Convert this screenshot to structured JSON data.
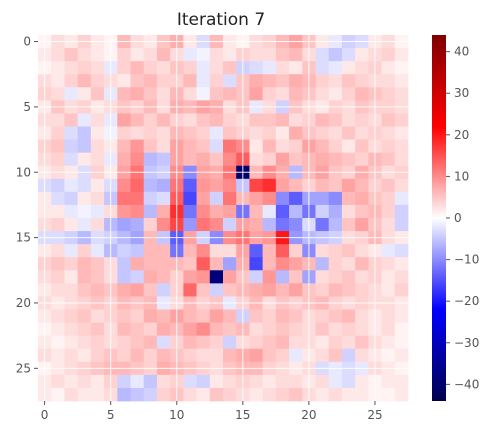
{
  "chart_data": {
    "type": "heatmap",
    "title": "Iteration 7",
    "rows": 28,
    "cols": 28,
    "xticks": [
      0,
      5,
      10,
      15,
      20,
      25
    ],
    "yticks": [
      0,
      5,
      10,
      15,
      20,
      25
    ],
    "colorbar": {
      "min": -44,
      "max": 44,
      "ticks": [
        40,
        30,
        20,
        10,
        0,
        -10,
        -20,
        -30,
        -40
      ],
      "colormap": "seismic"
    },
    "grid": true,
    "values": [
      [
        1,
        3,
        2,
        4,
        2,
        1,
        6,
        3,
        2,
        5,
        7,
        2,
        -3,
        6,
        2,
        1,
        3,
        4,
        6,
        8,
        5,
        2,
        -2,
        -4,
        -3,
        2,
        3,
        1
      ],
      [
        2,
        3,
        5,
        3,
        2,
        1,
        4,
        2,
        3,
        6,
        3,
        -2,
        -1,
        3,
        2,
        4,
        3,
        3,
        5,
        6,
        3,
        -3,
        -5,
        -3,
        2,
        3,
        4,
        2
      ],
      [
        1,
        2,
        3,
        4,
        3,
        -2,
        4,
        6,
        4,
        3,
        5,
        4,
        -2,
        3,
        5,
        -4,
        -3,
        -2,
        3,
        2,
        5,
        -3,
        -2,
        2,
        3,
        4,
        2,
        1
      ],
      [
        3,
        2,
        4,
        6,
        4,
        3,
        2,
        5,
        6,
        4,
        4,
        6,
        -2,
        4,
        -3,
        5,
        7,
        6,
        5,
        7,
        6,
        4,
        3,
        5,
        4,
        3,
        3,
        2
      ],
      [
        4,
        3,
        -2,
        2,
        5,
        -2,
        6,
        7,
        5,
        3,
        6,
        3,
        -1,
        5,
        6,
        5,
        8,
        4,
        3,
        6,
        5,
        3,
        2,
        4,
        6,
        5,
        4,
        3
      ],
      [
        2,
        5,
        3,
        4,
        2,
        3,
        5,
        4,
        6,
        3,
        7,
        6,
        8,
        7,
        3,
        5,
        -2,
        3,
        -4,
        5,
        3,
        2,
        4,
        3,
        5,
        4,
        4,
        3
      ],
      [
        3,
        3,
        5,
        -2,
        3,
        -2,
        8,
        6,
        4,
        6,
        4,
        3,
        5,
        6,
        4,
        3,
        5,
        5,
        6,
        3,
        4,
        6,
        5,
        3,
        4,
        3,
        5,
        4
      ],
      [
        2,
        4,
        -3,
        -5,
        2,
        -1,
        4,
        3,
        4,
        3,
        6,
        5,
        4,
        -2,
        5,
        4,
        3,
        4,
        2,
        7,
        5,
        4,
        3,
        5,
        3,
        4,
        3,
        2
      ],
      [
        4,
        5,
        -4,
        -5,
        3,
        2,
        6,
        9,
        5,
        3,
        8,
        6,
        5,
        -3,
        12,
        10,
        2,
        6,
        3,
        4,
        8,
        6,
        4,
        2,
        5,
        3,
        4,
        3
      ],
      [
        3,
        4,
        -3,
        2,
        3,
        -2,
        7,
        10,
        -6,
        -5,
        8,
        6,
        7,
        5,
        10,
        14,
        3,
        4,
        8,
        5,
        6,
        7,
        6,
        5,
        4,
        6,
        5,
        3
      ],
      [
        2,
        3,
        2,
        -3,
        4,
        2,
        8,
        12,
        -5,
        -4,
        10,
        -10,
        8,
        7,
        12,
        -40,
        6,
        10,
        7,
        -6,
        6,
        8,
        5,
        4,
        7,
        5,
        3,
        4
      ],
      [
        -3,
        -4,
        -2,
        -3,
        2,
        -3,
        10,
        13,
        -6,
        -7,
        12,
        -14,
        9,
        8,
        10,
        -5,
        16,
        18,
        8,
        6,
        4,
        6,
        5,
        8,
        6,
        4,
        5,
        3
      ],
      [
        2,
        -3,
        -4,
        2,
        3,
        -5,
        12,
        12,
        -4,
        -3,
        14,
        -16,
        8,
        -4,
        12,
        6,
        8,
        10,
        -10,
        -14,
        -8,
        -8,
        -10,
        6,
        7,
        5,
        4,
        -2
      ],
      [
        2,
        2,
        -2,
        -1,
        -2,
        3,
        9,
        10,
        -6,
        7,
        18,
        -12,
        10,
        7,
        8,
        -12,
        6,
        -2,
        -14,
        -6,
        -12,
        -4,
        -7,
        3,
        5,
        6,
        4,
        -4
      ],
      [
        3,
        4,
        2,
        -2,
        3,
        -6,
        -8,
        -7,
        4,
        10,
        16,
        -9,
        12,
        10,
        -4,
        8,
        7,
        -6,
        -12,
        -10,
        -3,
        -12,
        -6,
        5,
        8,
        5,
        3,
        -4
      ],
      [
        -3,
        -3,
        -4,
        -6,
        -3,
        -4,
        -6,
        -8,
        6,
        -5,
        -14,
        8,
        -4,
        -10,
        10,
        12,
        8,
        9,
        20,
        -9,
        -6,
        -5,
        -4,
        3,
        4,
        6,
        3,
        2
      ],
      [
        2,
        3,
        -2,
        4,
        -2,
        -6,
        -4,
        -5,
        6,
        6,
        -12,
        6,
        10,
        3,
        3,
        8,
        -14,
        6,
        14,
        4,
        -10,
        3,
        4,
        5,
        3,
        2,
        -2,
        -3
      ],
      [
        4,
        5,
        4,
        6,
        5,
        3,
        -5,
        7,
        6,
        6,
        6,
        5,
        14,
        6,
        -8,
        7,
        -16,
        6,
        10,
        8,
        6,
        -6,
        4,
        3,
        6,
        4,
        3,
        2
      ],
      [
        3,
        4,
        2,
        6,
        5,
        3,
        -5,
        -4,
        7,
        6,
        4,
        8,
        9,
        -38,
        8,
        5,
        -4,
        9,
        -6,
        5,
        -8,
        3,
        4,
        5,
        3,
        4,
        2,
        3
      ],
      [
        2,
        3,
        3,
        5,
        6,
        5,
        7,
        8,
        5,
        -4,
        4,
        13,
        5,
        -4,
        5,
        6,
        7,
        8,
        6,
        8,
        5,
        4,
        6,
        5,
        4,
        3,
        2,
        4
      ],
      [
        3,
        2,
        3,
        4,
        5,
        4,
        6,
        5,
        6,
        -2,
        3,
        6,
        4,
        5,
        -2,
        4,
        6,
        3,
        5,
        4,
        5,
        6,
        4,
        3,
        4,
        3,
        3,
        2
      ],
      [
        2,
        3,
        4,
        5,
        3,
        4,
        5,
        4,
        7,
        6,
        8,
        6,
        5,
        8,
        6,
        -4,
        5,
        4,
        6,
        5,
        3,
        4,
        5,
        6,
        3,
        2,
        3,
        2
      ],
      [
        1,
        2,
        3,
        4,
        5,
        3,
        6,
        5,
        4,
        7,
        6,
        8,
        10,
        6,
        5,
        6,
        3,
        4,
        5,
        4,
        3,
        5,
        3,
        4,
        3,
        2,
        3,
        1
      ],
      [
        2,
        1,
        2,
        3,
        4,
        3,
        4,
        5,
        6,
        -3,
        4,
        6,
        5,
        4,
        -4,
        3,
        4,
        5,
        6,
        3,
        3,
        2,
        4,
        3,
        5,
        3,
        2,
        1
      ],
      [
        3,
        2,
        3,
        2,
        4,
        5,
        4,
        6,
        4,
        6,
        5,
        4,
        3,
        3,
        6,
        7,
        8,
        5,
        4,
        -2,
        2,
        3,
        5,
        -4,
        3,
        2,
        1,
        2
      ],
      [
        1,
        2,
        3,
        4,
        5,
        6,
        6,
        5,
        4,
        7,
        6,
        5,
        4,
        3,
        5,
        6,
        6,
        4,
        3,
        2,
        3,
        -3,
        -2,
        -3,
        -2,
        3,
        2,
        1
      ],
      [
        2,
        3,
        2,
        3,
        2,
        4,
        -4,
        -2,
        -5,
        3,
        4,
        -3,
        -4,
        2,
        3,
        4,
        3,
        2,
        3,
        3,
        2,
        3,
        -2,
        -3,
        2,
        1,
        2,
        2
      ],
      [
        2,
        1,
        3,
        2,
        2,
        3,
        -6,
        -5,
        -4,
        4,
        5,
        3,
        2,
        5,
        4,
        3,
        2,
        3,
        4,
        5,
        3,
        2,
        3,
        2,
        2,
        1,
        1,
        2
      ]
    ]
  }
}
